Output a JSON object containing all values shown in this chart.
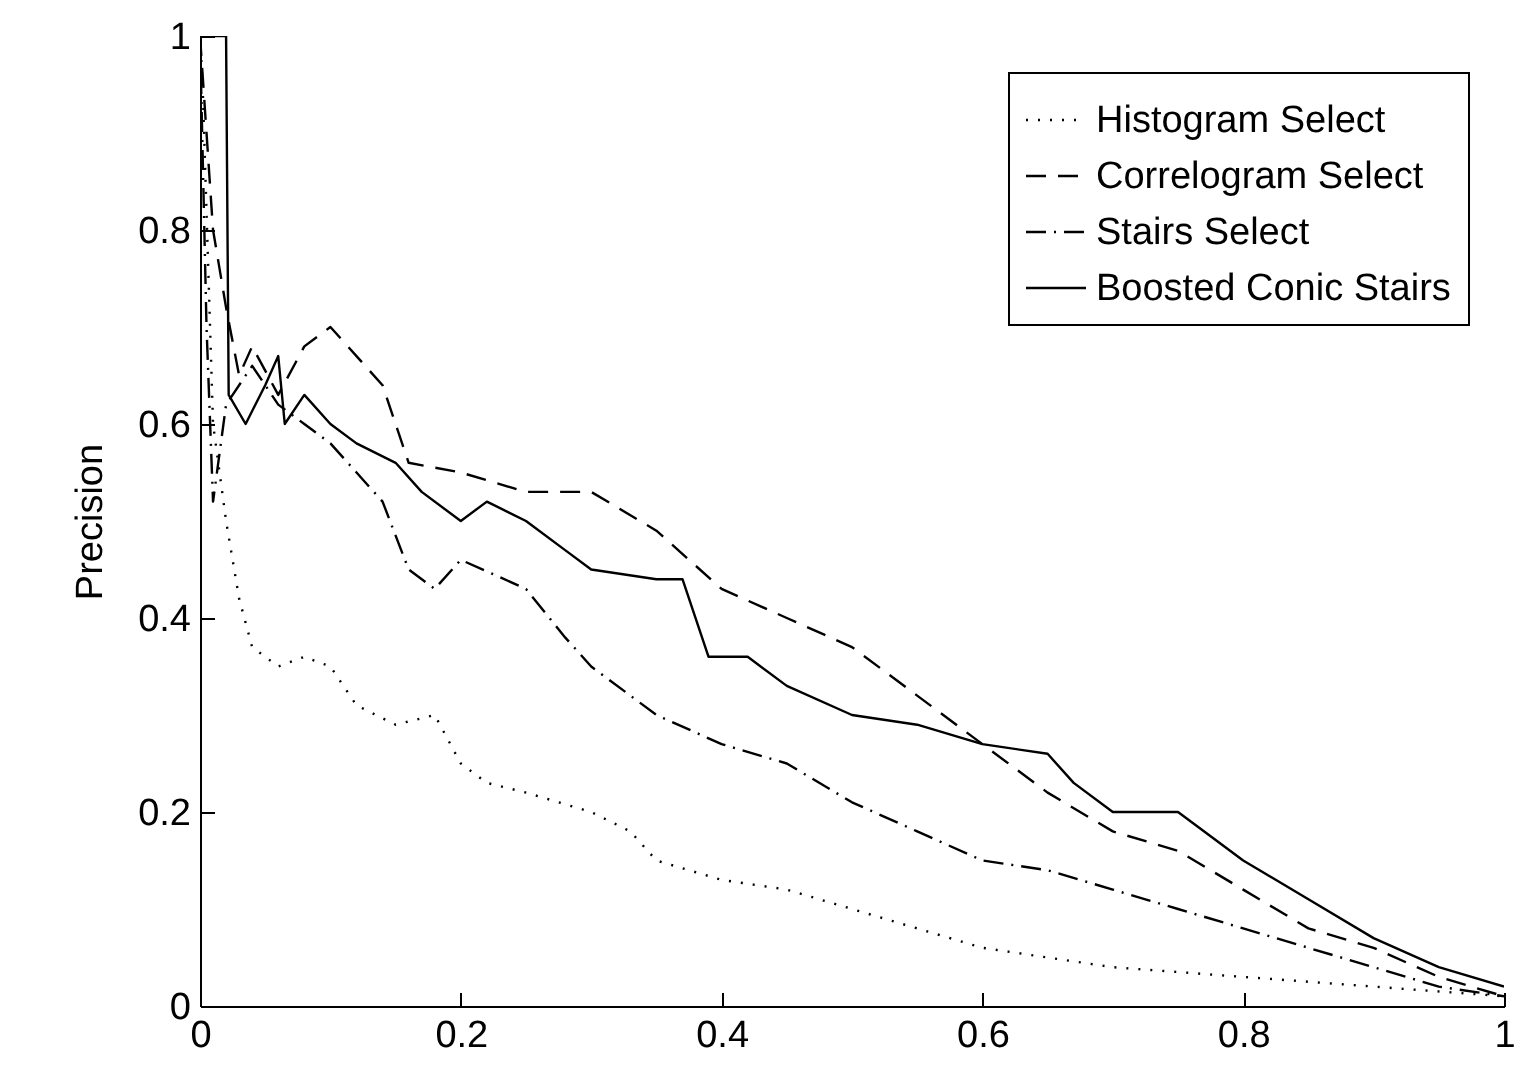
{
  "chart_data": {
    "type": "line",
    "ylabel": "Precision",
    "xlim": [
      0,
      1
    ],
    "ylim": [
      0,
      1
    ],
    "xticks": [
      0,
      0.2,
      0.4,
      0.6,
      0.8,
      1
    ],
    "yticks": [
      0,
      0.2,
      0.4,
      0.6,
      0.8,
      1
    ],
    "grid": false,
    "legend": "top right",
    "marker": "none",
    "series": [
      {
        "name": "Histogram Select",
        "color": "#000000",
        "line_style": "dotted",
        "x": [
          0,
          0.002,
          0.01,
          0.02,
          0.03,
          0.04,
          0.06,
          0.08,
          0.1,
          0.12,
          0.15,
          0.18,
          0.2,
          0.22,
          0.25,
          0.3,
          0.33,
          0.35,
          0.4,
          0.45,
          0.5,
          0.55,
          0.6,
          0.65,
          0.7,
          0.8,
          0.9,
          1
        ],
        "values": [
          1,
          0.95,
          0.6,
          0.5,
          0.42,
          0.37,
          0.35,
          0.36,
          0.35,
          0.31,
          0.29,
          0.3,
          0.25,
          0.23,
          0.22,
          0.2,
          0.18,
          0.15,
          0.13,
          0.12,
          0.1,
          0.08,
          0.06,
          0.05,
          0.04,
          0.03,
          0.02,
          0.01
        ]
      },
      {
        "name": "Correlogram Select",
        "color": "#000000",
        "line_style": "dashed",
        "x": [
          0,
          0.01,
          0.02,
          0.03,
          0.04,
          0.06,
          0.08,
          0.1,
          0.12,
          0.14,
          0.16,
          0.2,
          0.25,
          0.3,
          0.35,
          0.4,
          0.45,
          0.5,
          0.55,
          0.6,
          0.65,
          0.7,
          0.75,
          0.8,
          0.85,
          0.9,
          0.95,
          1
        ],
        "values": [
          1,
          0.8,
          0.72,
          0.65,
          0.68,
          0.63,
          0.68,
          0.7,
          0.67,
          0.64,
          0.56,
          0.55,
          0.53,
          0.53,
          0.49,
          0.43,
          0.4,
          0.37,
          0.32,
          0.27,
          0.22,
          0.18,
          0.16,
          0.12,
          0.08,
          0.06,
          0.03,
          0.01
        ]
      },
      {
        "name": "Stairs Select",
        "color": "#000000",
        "line_style": "dashdot",
        "x": [
          0,
          0.005,
          0.01,
          0.02,
          0.04,
          0.06,
          0.08,
          0.1,
          0.14,
          0.16,
          0.18,
          0.2,
          0.25,
          0.28,
          0.3,
          0.35,
          0.4,
          0.45,
          0.5,
          0.55,
          0.6,
          0.65,
          0.7,
          0.75,
          0.8,
          0.85,
          0.9,
          0.95,
          1
        ],
        "values": [
          1,
          0.7,
          0.52,
          0.62,
          0.66,
          0.62,
          0.6,
          0.58,
          0.52,
          0.45,
          0.43,
          0.46,
          0.43,
          0.38,
          0.35,
          0.3,
          0.27,
          0.25,
          0.21,
          0.18,
          0.15,
          0.14,
          0.12,
          0.1,
          0.08,
          0.06,
          0.04,
          0.02,
          0.01
        ]
      },
      {
        "name": "Boosted Conic Stairs",
        "color": "#000000",
        "line_style": "solid",
        "x": [
          0,
          0.02,
          0.022,
          0.035,
          0.05,
          0.06,
          0.065,
          0.08,
          0.1,
          0.12,
          0.15,
          0.17,
          0.2,
          0.22,
          0.25,
          0.28,
          0.3,
          0.35,
          0.37,
          0.39,
          0.42,
          0.45,
          0.5,
          0.55,
          0.6,
          0.65,
          0.67,
          0.7,
          0.75,
          0.8,
          0.85,
          0.9,
          0.95,
          1
        ],
        "values": [
          1,
          1,
          0.63,
          0.6,
          0.64,
          0.67,
          0.6,
          0.63,
          0.6,
          0.58,
          0.56,
          0.53,
          0.5,
          0.52,
          0.5,
          0.47,
          0.45,
          0.44,
          0.44,
          0.36,
          0.36,
          0.33,
          0.3,
          0.29,
          0.27,
          0.26,
          0.23,
          0.2,
          0.2,
          0.15,
          0.11,
          0.07,
          0.04,
          0.02
        ]
      }
    ]
  }
}
